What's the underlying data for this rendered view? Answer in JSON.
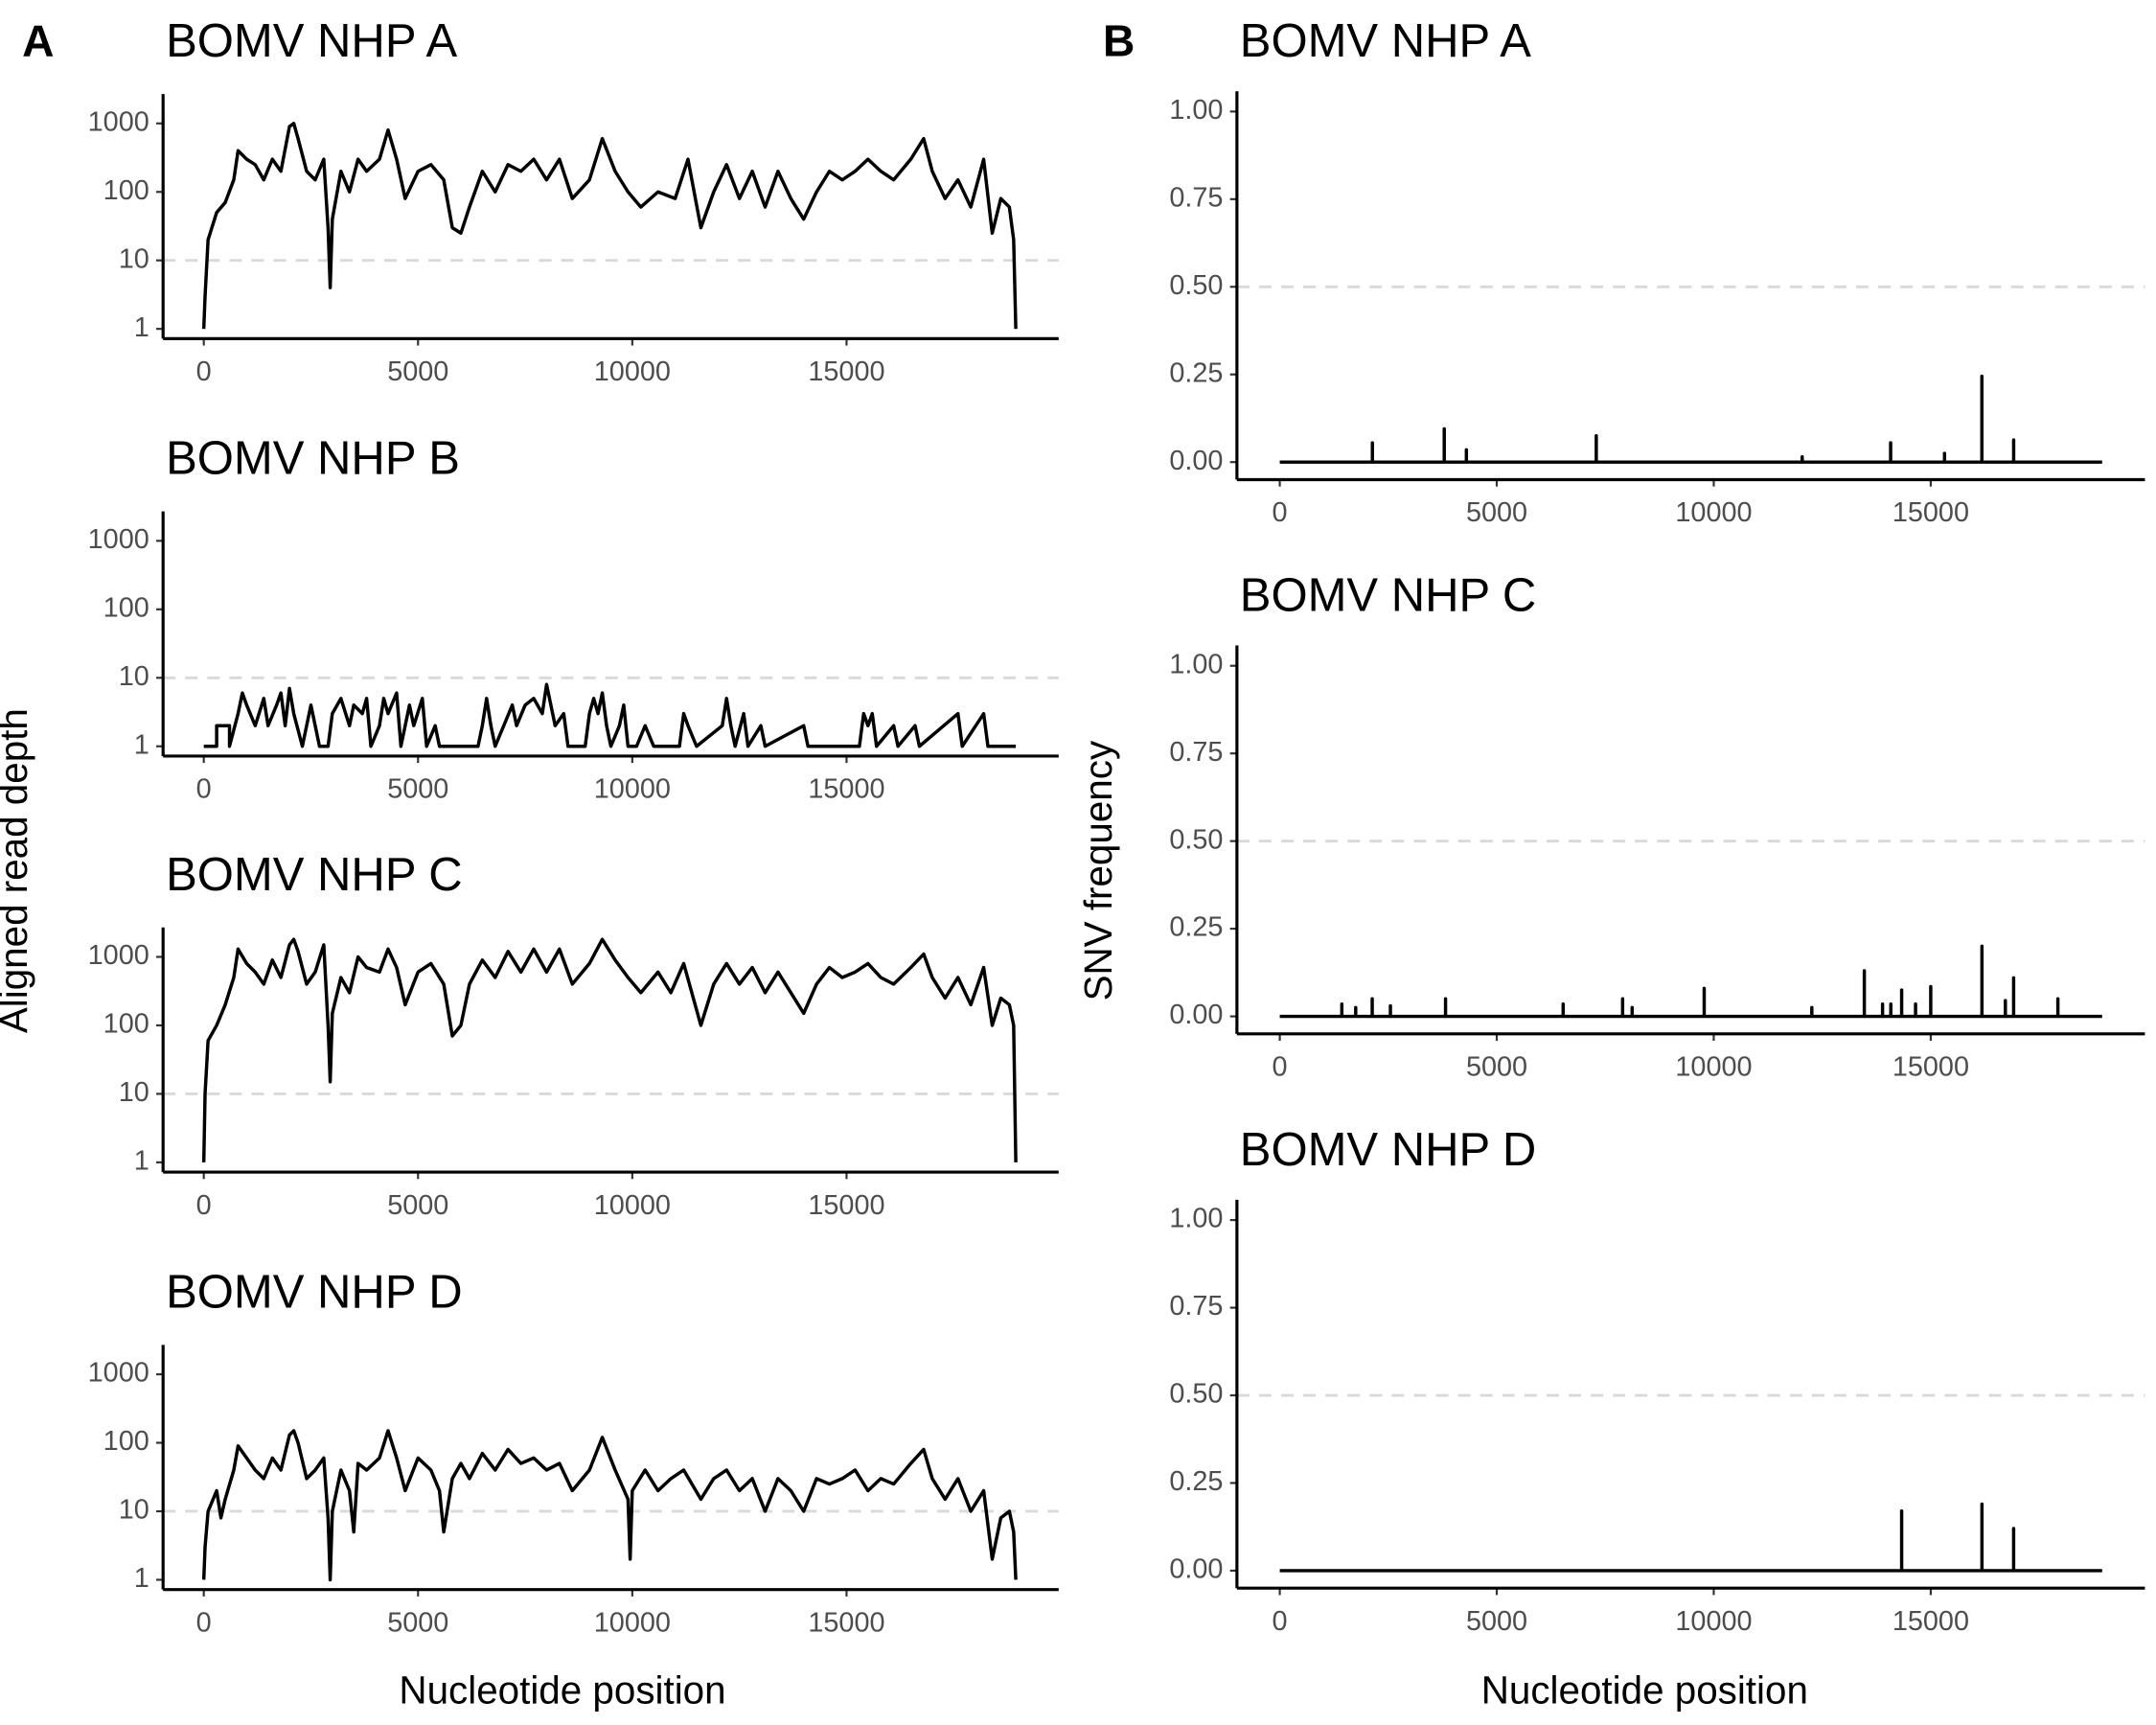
{
  "panels": [
    {
      "label": "A",
      "y_label": "Aligned read depth",
      "x_label": "Nucleotide position"
    },
    {
      "label": "B",
      "y_label": "SNV frequency",
      "x_label": "Nucleotide position"
    }
  ],
  "chart_data": [
    {
      "type": "line",
      "title": "BOMV NHP A",
      "color": "#000000",
      "log": true,
      "reference_line": 10,
      "xlim": [
        -950,
        19950
      ],
      "xticks": [
        0,
        5000,
        10000,
        15000
      ],
      "ylim": [
        0.72,
        2450
      ],
      "yticks": [
        1,
        10,
        100,
        1000
      ],
      "x": [
        0,
        30,
        100,
        300,
        500,
        700,
        800,
        1000,
        1200,
        1400,
        1600,
        1800,
        2000,
        2100,
        2200,
        2400,
        2600,
        2800,
        2900,
        2950,
        3000,
        3200,
        3400,
        3600,
        3800,
        4100,
        4300,
        4500,
        4700,
        5000,
        5300,
        5600,
        5800,
        6000,
        6200,
        6500,
        6800,
        7100,
        7400,
        7700,
        8000,
        8300,
        8600,
        9000,
        9300,
        9600,
        9900,
        10200,
        10600,
        11000,
        11300,
        11600,
        11900,
        12200,
        12500,
        12800,
        13100,
        13400,
        13700,
        14000,
        14300,
        14600,
        14900,
        15200,
        15500,
        15800,
        16100,
        16500,
        16800,
        17000,
        17300,
        17600,
        17900,
        18200,
        18400,
        18600,
        18800,
        18900,
        18950
      ],
      "values": [
        1,
        3,
        20,
        50,
        70,
        150,
        400,
        300,
        250,
        150,
        300,
        200,
        900,
        1000,
        600,
        200,
        150,
        300,
        30,
        4,
        40,
        200,
        100,
        300,
        200,
        300,
        800,
        300,
        80,
        200,
        250,
        150,
        30,
        25,
        60,
        200,
        100,
        250,
        200,
        300,
        150,
        300,
        80,
        150,
        600,
        200,
        100,
        60,
        100,
        80,
        300,
        30,
        100,
        250,
        80,
        200,
        60,
        200,
        80,
        40,
        100,
        200,
        150,
        200,
        300,
        200,
        150,
        300,
        600,
        200,
        80,
        150,
        60,
        300,
        25,
        80,
        60,
        20,
        1
      ]
    },
    {
      "type": "line",
      "title": "BOMV NHP B",
      "color": "#000000",
      "log": true,
      "reference_line": 10,
      "xlim": [
        -950,
        19950
      ],
      "xticks": [
        0,
        5000,
        10000,
        15000
      ],
      "ylim": [
        0.72,
        2450
      ],
      "yticks": [
        1,
        10,
        100,
        1000
      ],
      "x": [
        0,
        300,
        300,
        600,
        600,
        800,
        900,
        1000,
        1200,
        1400,
        1500,
        1700,
        1800,
        1900,
        2000,
        2100,
        2300,
        2500,
        2600,
        2700,
        2900,
        3000,
        3200,
        3400,
        3500,
        3700,
        3800,
        3900,
        4100,
        4200,
        4300,
        4500,
        4600,
        4800,
        4900,
        5100,
        5200,
        5400,
        5500,
        6400,
        6500,
        6600,
        6700,
        6800,
        7000,
        7200,
        7300,
        7500,
        7700,
        7900,
        8000,
        8100,
        8200,
        8400,
        8500,
        8900,
        9000,
        9100,
        9200,
        9300,
        9400,
        9500,
        9700,
        9800,
        9900,
        10100,
        10300,
        10500,
        11100,
        11200,
        11300,
        11500,
        12100,
        12200,
        12300,
        12400,
        12600,
        12700,
        13000,
        13100,
        14000,
        14100,
        15300,
        15400,
        15500,
        15600,
        15700,
        16100,
        16200,
        16600,
        16700,
        17600,
        17700,
        18200,
        18300,
        18950
      ],
      "values": [
        1,
        1,
        2,
        2,
        1,
        3,
        6,
        4,
        2,
        5,
        2,
        4,
        6,
        2,
        7,
        3,
        1,
        4,
        2,
        1,
        1,
        3,
        5,
        2,
        4,
        3,
        5,
        1,
        2,
        5,
        3,
        6,
        1,
        4,
        2,
        5,
        1,
        2,
        1,
        1,
        2,
        5,
        2,
        1,
        2,
        4,
        2,
        4,
        5,
        3,
        8,
        4,
        2,
        3,
        1,
        1,
        3,
        5,
        3,
        6,
        2,
        1,
        2,
        4,
        1,
        1,
        2,
        1,
        1,
        3,
        2,
        1,
        2,
        5,
        2,
        1,
        3,
        1,
        2,
        1,
        2,
        1,
        1,
        3,
        2,
        3,
        1,
        2,
        1,
        2,
        1,
        3,
        1,
        3,
        1,
        1
      ]
    },
    {
      "type": "line",
      "title": "BOMV NHP C",
      "color": "#000000",
      "log": true,
      "reference_line": 10,
      "xlim": [
        -950,
        19950
      ],
      "xticks": [
        0,
        5000,
        10000,
        15000
      ],
      "ylim": [
        0.72,
        2450
      ],
      "yticks": [
        1,
        10,
        100,
        1000
      ],
      "x": [
        0,
        30,
        100,
        300,
        500,
        700,
        800,
        1000,
        1200,
        1400,
        1600,
        1800,
        2000,
        2100,
        2200,
        2400,
        2600,
        2800,
        2900,
        2950,
        3000,
        3200,
        3400,
        3600,
        3800,
        4100,
        4300,
        4500,
        4700,
        5000,
        5300,
        5600,
        5800,
        6000,
        6200,
        6500,
        6800,
        7100,
        7400,
        7700,
        8000,
        8300,
        8600,
        9000,
        9300,
        9600,
        9900,
        10200,
        10600,
        10900,
        11200,
        11600,
        11900,
        12200,
        12500,
        12800,
        13100,
        13400,
        13700,
        14000,
        14300,
        14600,
        14900,
        15200,
        15500,
        15800,
        16100,
        16500,
        16800,
        17000,
        17300,
        17600,
        17900,
        18200,
        18400,
        18600,
        18800,
        18900,
        18950
      ],
      "values": [
        1,
        10,
        60,
        100,
        200,
        500,
        1300,
        800,
        600,
        400,
        900,
        500,
        1500,
        1800,
        1200,
        400,
        600,
        1500,
        100,
        15,
        150,
        500,
        300,
        1000,
        700,
        600,
        1300,
        700,
        200,
        600,
        800,
        400,
        70,
        100,
        400,
        900,
        500,
        1200,
        600,
        1300,
        600,
        1300,
        400,
        800,
        1800,
        900,
        500,
        300,
        600,
        300,
        800,
        100,
        400,
        800,
        400,
        700,
        300,
        600,
        300,
        150,
        400,
        700,
        500,
        600,
        800,
        500,
        400,
        700,
        1100,
        500,
        250,
        500,
        200,
        700,
        100,
        250,
        200,
        100,
        1
      ]
    },
    {
      "type": "line",
      "title": "BOMV NHP D",
      "color": "#000000",
      "log": true,
      "reference_line": 10,
      "xlim": [
        -950,
        19950
      ],
      "xticks": [
        0,
        5000,
        10000,
        15000
      ],
      "ylim": [
        0.72,
        2450
      ],
      "yticks": [
        1,
        10,
        100,
        1000
      ],
      "x": [
        0,
        30,
        100,
        300,
        400,
        500,
        700,
        800,
        1000,
        1200,
        1400,
        1600,
        1800,
        2000,
        2100,
        2200,
        2400,
        2600,
        2800,
        2900,
        2950,
        3000,
        3200,
        3400,
        3500,
        3600,
        3800,
        4100,
        4300,
        4500,
        4700,
        5000,
        5300,
        5500,
        5600,
        5800,
        6000,
        6200,
        6500,
        6800,
        7100,
        7400,
        7700,
        8000,
        8300,
        8600,
        9000,
        9300,
        9600,
        9900,
        9950,
        10000,
        10300,
        10600,
        10900,
        11200,
        11600,
        11900,
        12200,
        12500,
        12800,
        13100,
        13400,
        13700,
        14000,
        14300,
        14600,
        14900,
        15200,
        15500,
        15800,
        16100,
        16500,
        16800,
        17000,
        17300,
        17600,
        17900,
        18200,
        18400,
        18600,
        18800,
        18900,
        18950
      ],
      "values": [
        1,
        3,
        10,
        20,
        8,
        15,
        40,
        90,
        60,
        40,
        30,
        60,
        40,
        130,
        150,
        100,
        30,
        40,
        60,
        8,
        1,
        10,
        40,
        20,
        5,
        50,
        40,
        60,
        150,
        60,
        20,
        60,
        40,
        20,
        5,
        30,
        50,
        30,
        70,
        40,
        80,
        50,
        60,
        40,
        50,
        20,
        40,
        120,
        40,
        15,
        2,
        20,
        40,
        20,
        30,
        40,
        15,
        30,
        40,
        20,
        30,
        10,
        30,
        20,
        10,
        30,
        25,
        30,
        40,
        20,
        30,
        25,
        50,
        80,
        30,
        15,
        30,
        10,
        20,
        2,
        8,
        10,
        5,
        1
      ]
    },
    {
      "type": "line",
      "title": "BOMV NHP A",
      "color": "#000000",
      "log": false,
      "reference_line": 0.5,
      "xlim": [
        -987,
        19936
      ],
      "xticks": [
        0,
        5000,
        10000,
        15000
      ],
      "ylim": [
        -0.05,
        1.05
      ],
      "yticks": [
        {
          "value": 0,
          "label": "0.00"
        },
        {
          "value": 0.25,
          "label": "0.25"
        },
        {
          "value": 0.5,
          "label": "0.50"
        },
        {
          "value": 0.75,
          "label": "0.75"
        },
        {
          "value": 1,
          "label": "1.00"
        }
      ],
      "x": [
        0,
        2134,
        2134,
        2134,
        3790,
        3790,
        3790,
        4300,
        4300,
        4300,
        7293,
        7293,
        7293,
        12038,
        12038,
        12038,
        14076,
        14076,
        14076,
        15318,
        15318,
        15318,
        16178,
        16178,
        16178,
        16911,
        16911,
        16911,
        18950
      ],
      "values": [
        0,
        0,
        0.055,
        0,
        0,
        0.095,
        0,
        0,
        0.035,
        0,
        0,
        0.075,
        0,
        0,
        0.015,
        0,
        0,
        0.055,
        0,
        0,
        0.025,
        0,
        0,
        0.245,
        0,
        0,
        0.063,
        0,
        0
      ]
    },
    {
      "type": "line",
      "title": "BOMV NHP C",
      "color": "#000000",
      "log": false,
      "reference_line": 0.5,
      "xlim": [
        -987,
        19936
      ],
      "xticks": [
        0,
        5000,
        10000,
        15000
      ],
      "ylim": [
        -0.05,
        1.05
      ],
      "yticks": [
        {
          "value": 0,
          "label": "0.00"
        },
        {
          "value": 0.25,
          "label": "0.25"
        },
        {
          "value": 0.5,
          "label": "0.50"
        },
        {
          "value": 0.75,
          "label": "0.75"
        },
        {
          "value": 1,
          "label": "1.00"
        }
      ],
      "x": [
        0,
        1430,
        1430,
        1430,
        1750,
        1750,
        1750,
        2130,
        2130,
        2130,
        2550,
        2550,
        2550,
        3820,
        3820,
        3820,
        6530,
        6530,
        6530,
        7900,
        7900,
        7900,
        8120,
        8120,
        8120,
        9780,
        9780,
        9780,
        12260,
        12260,
        12260,
        13470,
        13470,
        13470,
        13890,
        13890,
        13890,
        14080,
        14080,
        14080,
        14330,
        14330,
        14330,
        14650,
        14650,
        14650,
        15000,
        15000,
        15000,
        16180,
        16180,
        16180,
        16720,
        16720,
        16720,
        16910,
        16910,
        16910,
        17930,
        17930,
        17930,
        18950
      ],
      "values": [
        0,
        0,
        0.035,
        0,
        0,
        0.025,
        0,
        0,
        0.05,
        0,
        0,
        0.03,
        0,
        0,
        0.05,
        0,
        0,
        0.035,
        0,
        0,
        0.05,
        0,
        0,
        0.025,
        0,
        0,
        0.08,
        0,
        0,
        0.025,
        0,
        0,
        0.13,
        0,
        0,
        0.035,
        0,
        0,
        0.035,
        0,
        0,
        0.075,
        0,
        0,
        0.035,
        0,
        0,
        0.085,
        0,
        0,
        0.2,
        0,
        0,
        0.045,
        0,
        0,
        0.11,
        0,
        0,
        0.05,
        0,
        0
      ]
    },
    {
      "type": "line",
      "title": "BOMV NHP D",
      "color": "#000000",
      "log": false,
      "reference_line": 0.5,
      "xlim": [
        -987,
        19936
      ],
      "xticks": [
        0,
        5000,
        10000,
        15000
      ],
      "ylim": [
        -0.05,
        1.05
      ],
      "yticks": [
        {
          "value": 0,
          "label": "0.00"
        },
        {
          "value": 0.25,
          "label": "0.25"
        },
        {
          "value": 0.5,
          "label": "0.50"
        },
        {
          "value": 0.75,
          "label": "0.75"
        },
        {
          "value": 1,
          "label": "1.00"
        }
      ],
      "x": [
        0,
        14330,
        14330,
        14330,
        16180,
        16180,
        16180,
        16910,
        16910,
        16910,
        18950
      ],
      "values": [
        0,
        0,
        0.17,
        0,
        0,
        0.19,
        0,
        0,
        0.12,
        0,
        0
      ]
    }
  ]
}
